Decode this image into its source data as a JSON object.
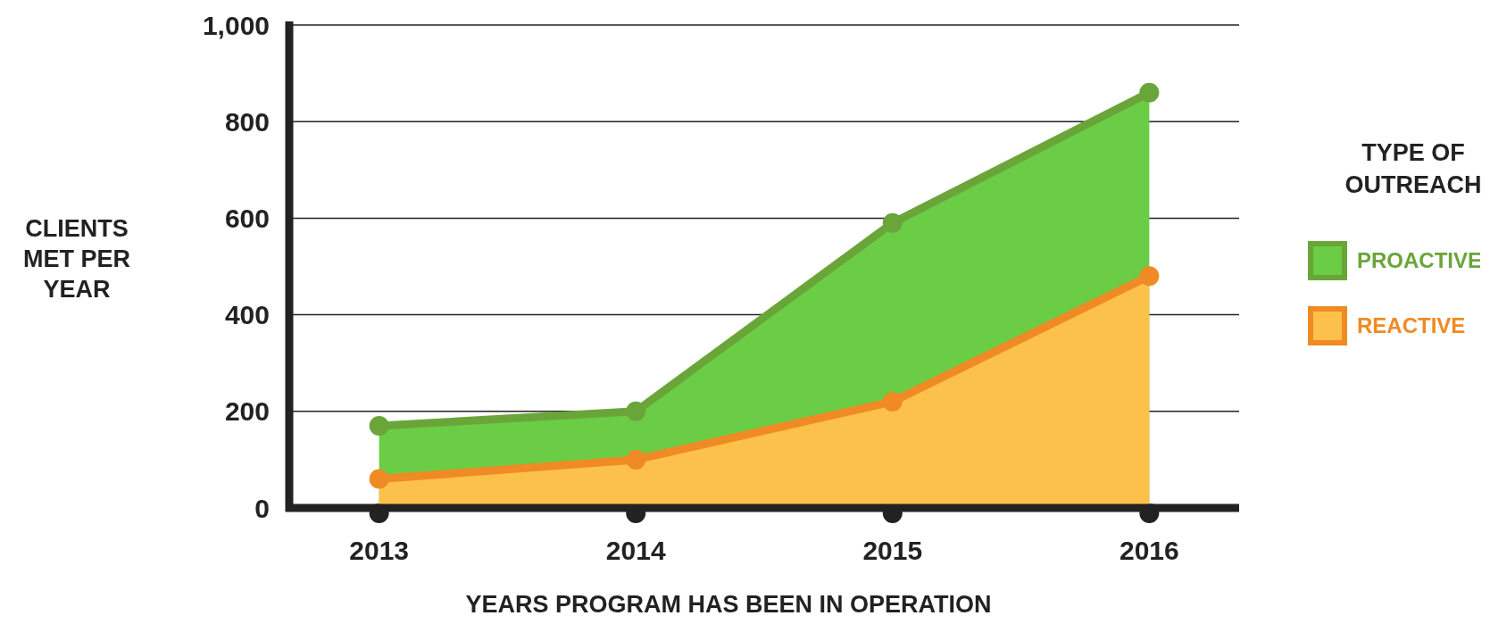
{
  "chart_data": {
    "type": "area",
    "xlabel": "YEARS PROGRAM HAS BEEN IN OPERATION",
    "ylabel": "CLIENTS MET PER YEAR",
    "legend_title": "TYPE OF OUTREACH",
    "legend": "right",
    "grid": "y",
    "marker": "circle",
    "categories": [
      "2013",
      "2014",
      "2015",
      "2016"
    ],
    "series": [
      {
        "name": "PROACTIVE",
        "color": "#6aa53a",
        "values": [
          170,
          200,
          590,
          860
        ]
      },
      {
        "name": "REACTIVE",
        "color": "#f08a24",
        "values": [
          60,
          100,
          220,
          480
        ]
      }
    ],
    "ylim": [
      0,
      1000
    ],
    "yticks": [
      0,
      200,
      400,
      600,
      800,
      {
        "value": 1000,
        "label": "1,000"
      }
    ]
  }
}
